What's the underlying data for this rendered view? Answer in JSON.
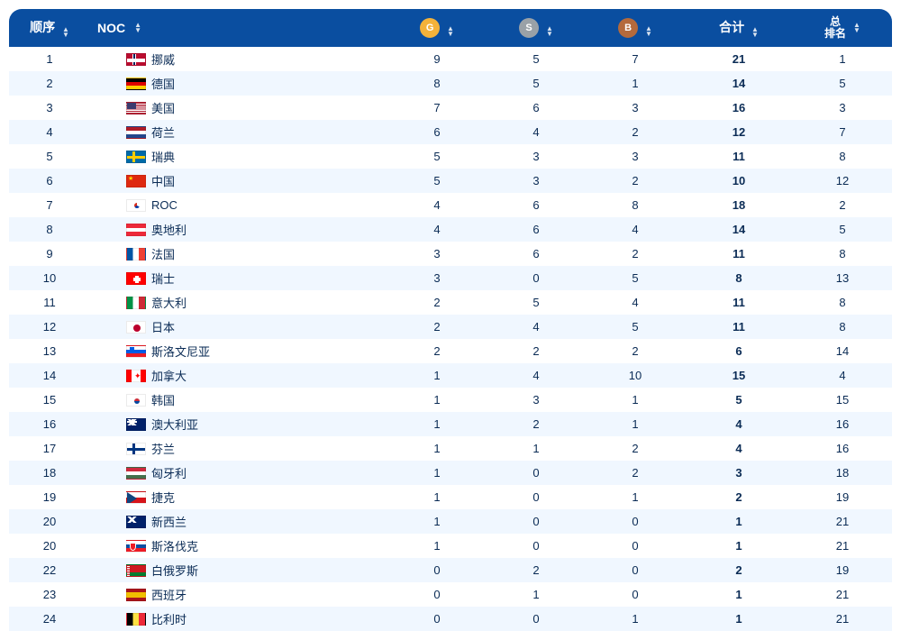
{
  "header": {
    "rank": "顺序",
    "noc": "NOC",
    "gold": "G",
    "silver": "S",
    "bronze": "B",
    "total": "合计",
    "overall_rank_l1": "总",
    "overall_rank_l2": "排名"
  },
  "colors": {
    "header_bg": "#0a4ea0",
    "row_alt_bg": "#f0f7ff",
    "text": "#0a2b55",
    "gold": "#f3b23a",
    "silver": "#9aa1a7",
    "bronze": "#b46a3c"
  },
  "rows": [
    {
      "rank": "1",
      "flag": "f-nor",
      "country": "挪威",
      "g": "9",
      "s": "5",
      "b": "7",
      "tot": "21",
      "orank": "1"
    },
    {
      "rank": "2",
      "flag": "f-ger",
      "country": "德国",
      "g": "8",
      "s": "5",
      "b": "1",
      "tot": "14",
      "orank": "5"
    },
    {
      "rank": "3",
      "flag": "f-usa",
      "country": "美国",
      "g": "7",
      "s": "6",
      "b": "3",
      "tot": "16",
      "orank": "3"
    },
    {
      "rank": "4",
      "flag": "f-ned",
      "country": "荷兰",
      "g": "6",
      "s": "4",
      "b": "2",
      "tot": "12",
      "orank": "7"
    },
    {
      "rank": "5",
      "flag": "f-swe",
      "country": "瑞典",
      "g": "5",
      "s": "3",
      "b": "3",
      "tot": "11",
      "orank": "8"
    },
    {
      "rank": "6",
      "flag": "f-chn",
      "country": "中国",
      "g": "5",
      "s": "3",
      "b": "2",
      "tot": "10",
      "orank": "12"
    },
    {
      "rank": "7",
      "flag": "f-roc",
      "country": "ROC",
      "g": "4",
      "s": "6",
      "b": "8",
      "tot": "18",
      "orank": "2"
    },
    {
      "rank": "8",
      "flag": "f-aut",
      "country": "奥地利",
      "g": "4",
      "s": "6",
      "b": "4",
      "tot": "14",
      "orank": "5"
    },
    {
      "rank": "9",
      "flag": "f-fra",
      "country": "法国",
      "g": "3",
      "s": "6",
      "b": "2",
      "tot": "11",
      "orank": "8"
    },
    {
      "rank": "10",
      "flag": "f-sui",
      "country": "瑞士",
      "g": "3",
      "s": "0",
      "b": "5",
      "tot": "8",
      "orank": "13"
    },
    {
      "rank": "11",
      "flag": "f-ita",
      "country": "意大利",
      "g": "2",
      "s": "5",
      "b": "4",
      "tot": "11",
      "orank": "8"
    },
    {
      "rank": "12",
      "flag": "f-jpn",
      "country": "日本",
      "g": "2",
      "s": "4",
      "b": "5",
      "tot": "11",
      "orank": "8"
    },
    {
      "rank": "13",
      "flag": "f-slo",
      "country": "斯洛文尼亚",
      "g": "2",
      "s": "2",
      "b": "2",
      "tot": "6",
      "orank": "14"
    },
    {
      "rank": "14",
      "flag": "f-can",
      "country": "加拿大",
      "g": "1",
      "s": "4",
      "b": "10",
      "tot": "15",
      "orank": "4"
    },
    {
      "rank": "15",
      "flag": "f-kor",
      "country": "韩国",
      "g": "1",
      "s": "3",
      "b": "1",
      "tot": "5",
      "orank": "15"
    },
    {
      "rank": "16",
      "flag": "f-aus",
      "country": "澳大利亚",
      "g": "1",
      "s": "2",
      "b": "1",
      "tot": "4",
      "orank": "16"
    },
    {
      "rank": "17",
      "flag": "f-fin",
      "country": "芬兰",
      "g": "1",
      "s": "1",
      "b": "2",
      "tot": "4",
      "orank": "16"
    },
    {
      "rank": "18",
      "flag": "f-hun",
      "country": "匈牙利",
      "g": "1",
      "s": "0",
      "b": "2",
      "tot": "3",
      "orank": "18"
    },
    {
      "rank": "19",
      "flag": "f-cze",
      "country": "捷克",
      "g": "1",
      "s": "0",
      "b": "1",
      "tot": "2",
      "orank": "19"
    },
    {
      "rank": "20",
      "flag": "f-nzl",
      "country": "新西兰",
      "g": "1",
      "s": "0",
      "b": "0",
      "tot": "1",
      "orank": "21"
    },
    {
      "rank": "20",
      "flag": "f-svk",
      "country": "斯洛伐克",
      "g": "1",
      "s": "0",
      "b": "0",
      "tot": "1",
      "orank": "21"
    },
    {
      "rank": "22",
      "flag": "f-blr",
      "country": "白俄罗斯",
      "g": "0",
      "s": "2",
      "b": "0",
      "tot": "2",
      "orank": "19"
    },
    {
      "rank": "23",
      "flag": "f-esp",
      "country": "西班牙",
      "g": "0",
      "s": "1",
      "b": "0",
      "tot": "1",
      "orank": "21"
    },
    {
      "rank": "24",
      "flag": "f-bel",
      "country": "比利时",
      "g": "0",
      "s": "0",
      "b": "1",
      "tot": "1",
      "orank": "21"
    }
  ]
}
